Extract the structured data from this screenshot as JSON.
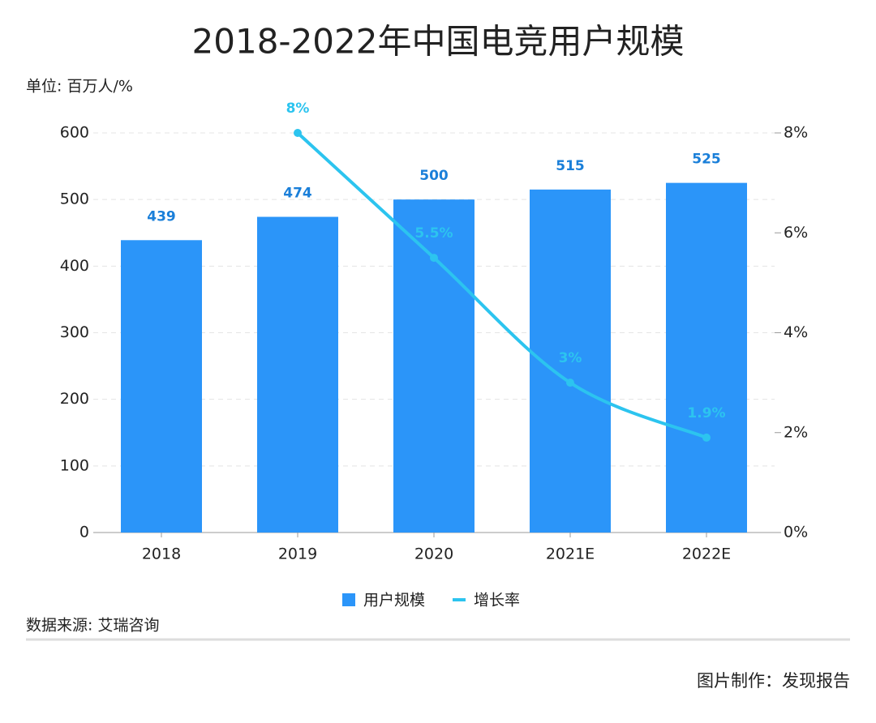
{
  "chart_data": {
    "type": "combo",
    "title": "2018-2022年中国电竞用户规模",
    "subtitle": "单位: 百万人/%",
    "source": "数据来源: 艾瑞咨询",
    "credit": "图片制作：发现报告",
    "categories": [
      "2018",
      "2019",
      "2020",
      "2021E",
      "2022E"
    ],
    "series": [
      {
        "name": "用户规模",
        "type": "bar",
        "color": "#2b95f9",
        "label_color": "#1a7fd9",
        "values": [
          439,
          474,
          500,
          515,
          525
        ]
      },
      {
        "name": "增长率",
        "type": "line",
        "axis": "y2",
        "color": "#2cc4ef",
        "values": [
          null,
          8,
          5.5,
          3,
          1.9
        ],
        "value_labels": [
          null,
          "8%",
          "5.5%",
          "3%",
          "1.9%"
        ]
      }
    ],
    "ylim": [
      0,
      600
    ],
    "yticks": [
      0,
      100,
      200,
      300,
      400,
      500,
      600
    ],
    "y2lim": [
      0,
      8
    ],
    "y2ticks": [
      {
        "value": 0,
        "label": "0%"
      },
      {
        "value": 2,
        "label": "2%"
      },
      {
        "value": 4,
        "label": "4%"
      },
      {
        "value": 6,
        "label": "6%"
      },
      {
        "value": 8,
        "label": "8%"
      }
    ],
    "grid": true
  }
}
